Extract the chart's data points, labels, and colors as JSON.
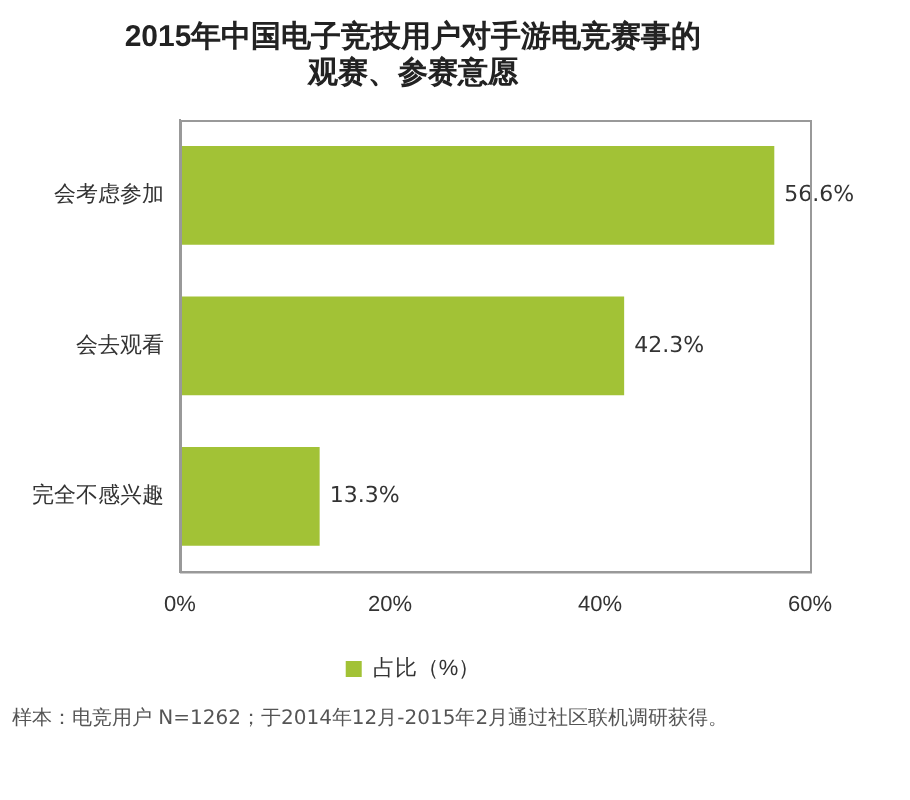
{
  "chart_data": {
    "type": "bar",
    "orientation": "horizontal",
    "title": [
      "2015年中国电子竞技用户对手游电竞赛事的",
      "观赛、参赛意愿"
    ],
    "categories": [
      "会考虑参加",
      "会去观看",
      "完全不感兴趣"
    ],
    "series": [
      {
        "name": "占比（%）",
        "color": "#a2c236",
        "values": [
          56.6,
          42.3,
          13.3
        ],
        "value_labels": [
          "56.6%",
          "42.3%",
          "13.3%"
        ]
      }
    ],
    "xlim": [
      0,
      60
    ],
    "xticks": [
      {
        "value": 0,
        "label": "0%"
      },
      {
        "value": 20,
        "label": "20%"
      },
      {
        "value": 40,
        "label": "40%"
      },
      {
        "value": 60,
        "label": "60%"
      }
    ],
    "grid": false,
    "legend": "bottom",
    "annotations": [
      "样本：电竞用户 N=1262；于2014年12月-2015年2月通过社区联机调研获得。"
    ]
  }
}
